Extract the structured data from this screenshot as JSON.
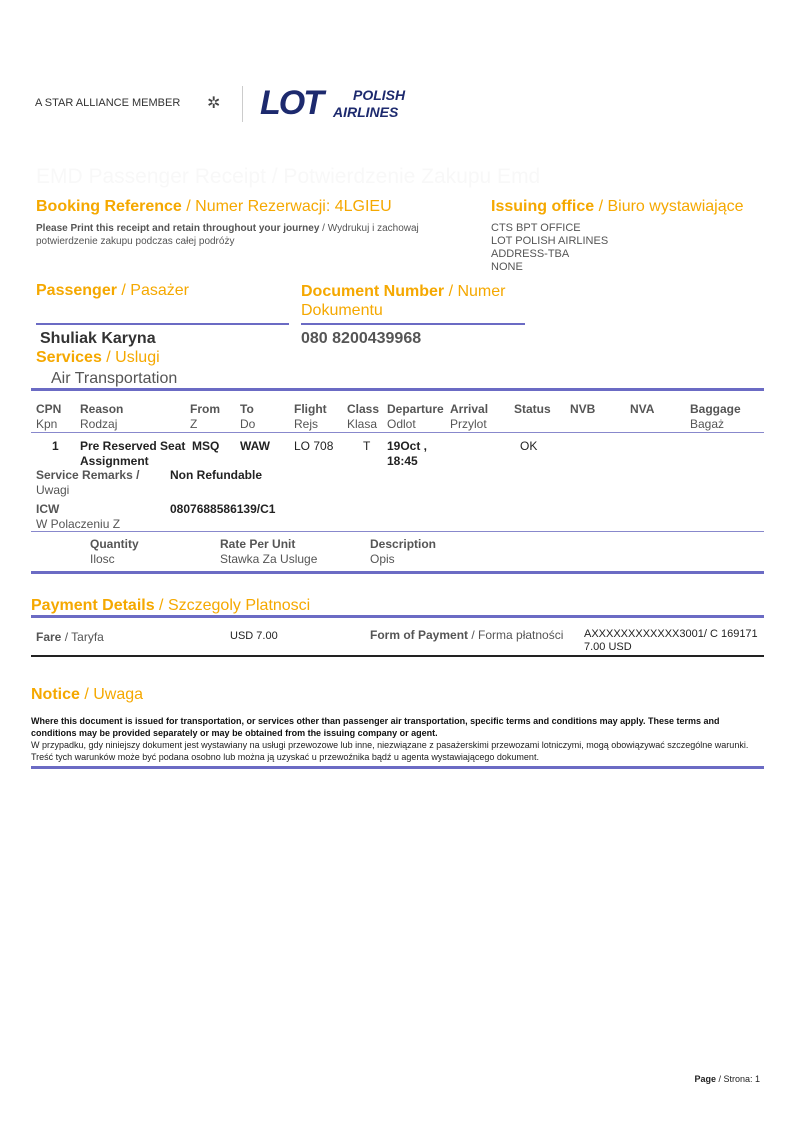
{
  "logo": {
    "star_alliance": "A STAR ALLIANCE MEMBER",
    "lot": "LOT",
    "polish": "POLISH",
    "airlines": "AIRLINES",
    "brand_color": "#1d2a6e"
  },
  "doc_title": "EMD Passenger Receipt / Potwierdzenie Zakupu Emd",
  "booking": {
    "label": "Booking Reference",
    "label_pl": " / Numer Rezerwacji: 4LGIEU",
    "note_bold": "Please Print this receipt and retain throughout your journey",
    "note_pl": " / Wydrukuj i zachowaj potwierdzenie zakupu podczas całej podróży"
  },
  "issuing": {
    "label": "Issuing office",
    "label_pl": " / Biuro wystawiające",
    "lines": [
      "CTS BPT OFFICE",
      "LOT POLISH AIRLINES",
      "ADDRESS-TBA",
      "NONE"
    ]
  },
  "passenger": {
    "label": "Passenger",
    "label_pl": " / Pasażer",
    "name": "Shuliak Karyna"
  },
  "document": {
    "label": "Document Number",
    "label_pl": " / Numer Dokumentu",
    "number": "080 8200439968"
  },
  "services": {
    "label": "Services",
    "label_pl": " / Uslugi",
    "value": "Air Transportation"
  },
  "table": {
    "headers": [
      [
        "CPN",
        "Kpn"
      ],
      [
        "Reason",
        "Rodzaj"
      ],
      [
        "From",
        "Z"
      ],
      [
        "To",
        "Do"
      ],
      [
        "Flight",
        "Rejs"
      ],
      [
        "Class",
        "Klasa"
      ],
      [
        "Departure",
        "Odlot"
      ],
      [
        "Arrival",
        "Przylot"
      ],
      [
        "Status",
        ""
      ],
      [
        "NVB",
        ""
      ],
      [
        "NVA",
        ""
      ],
      [
        "Baggage",
        "Bagaż"
      ]
    ],
    "row": {
      "cpn": "1",
      "reason": "Pre Reserved Seat Assignment",
      "from": "MSQ",
      "to": "WAW",
      "flight": "LO 708",
      "class": "T",
      "departure": "19Oct , 18:45",
      "arrival": "",
      "status": "OK"
    },
    "remarks_label": "Service Remarks /",
    "remarks_label_pl": "Uwagi",
    "remarks": "Non Refundable",
    "icw_label": "ICW",
    "icw_label_pl": "W Polaczeniu Z",
    "icw": "0807688586139/C1",
    "sub_headers": [
      [
        "Quantity",
        "Ilosc"
      ],
      [
        "Rate Per Unit",
        "Stawka Za Usluge"
      ],
      [
        "Description",
        "Opis"
      ]
    ]
  },
  "payment": {
    "label": "Payment Details",
    "label_pl": " / Szczegoly Platnosci",
    "fare_label": "Fare",
    "fare_label_pl": " / Taryfa",
    "fare": "USD 7.00",
    "fop_label": "Form of Payment",
    "fop_label_pl": " / Forma płatności",
    "fop_line1": "AXXXXXXXXXXXX3001/ C 169171",
    "fop_line2": "7.00 USD"
  },
  "notice": {
    "label": "Notice",
    "label_pl": " / Uwaga",
    "en": "Where this document is issued for transportation, or services other than passenger air transportation, specific terms and conditions may apply. These terms and conditions may be provided separately or may be obtained from the issuing company or agent.",
    "pl": "W przypadku, gdy niniejszy dokument jest wystawiany na usługi przewozowe lub inne, niezwiązane z pasażerskimi przewozami lotniczymi, mogą obowiązywać szczególne warunki. Treść tych warunków może być podana osobno lub można ją uzyskać u przewoźnika bądź u agenta wystawiającego dokument."
  },
  "footer": {
    "page_label": "Page",
    "page_rest": " / Strona: 1"
  },
  "colors": {
    "accent": "#f5a800",
    "rule": "#6b6bc4"
  }
}
